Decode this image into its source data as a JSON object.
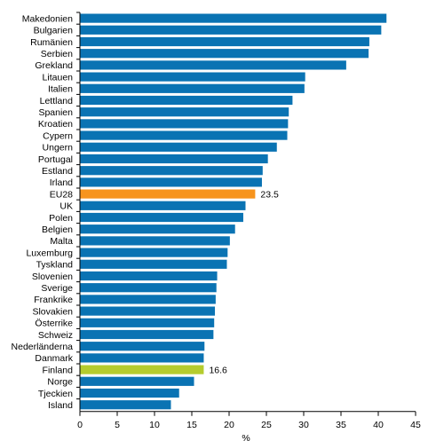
{
  "chart_data": {
    "type": "bar",
    "orientation": "horizontal",
    "title": "",
    "xlabel": "%",
    "ylabel": "",
    "xlim": [
      0,
      45
    ],
    "xticks": [
      0,
      5,
      10,
      15,
      20,
      25,
      30,
      35,
      40,
      45
    ],
    "grid": false,
    "categories": [
      "Makedonien",
      "Bulgarien",
      "Rumänien",
      "Serbien",
      "Grekland",
      "Litauen",
      "Italien",
      "Lettland",
      "Spanien",
      "Kroatien",
      "Cypern",
      "Ungern",
      "Portugal",
      "Estland",
      "Irland",
      "EU28",
      "UK",
      "Polen",
      "Belgien",
      "Malta",
      "Luxemburg",
      "Tyskland",
      "Slovenien",
      "Sverige",
      "Frankrike",
      "Slovakien",
      "Österrike",
      "Schweiz",
      "Nederländerna",
      "Danmark",
      "Finland",
      "Norge",
      "Tjeckien",
      "Island"
    ],
    "values": [
      41.1,
      40.4,
      38.8,
      38.7,
      35.7,
      30.2,
      30.1,
      28.5,
      28.0,
      27.9,
      27.8,
      26.4,
      25.2,
      24.5,
      24.4,
      23.5,
      22.2,
      21.9,
      20.8,
      20.1,
      19.8,
      19.7,
      18.4,
      18.3,
      18.2,
      18.1,
      18.0,
      17.9,
      16.7,
      16.6,
      16.6,
      15.3,
      13.3,
      12.2
    ],
    "data_labels": [
      {
        "category": "EU28",
        "text": "23.5"
      },
      {
        "category": "Finland",
        "text": "16.6"
      }
    ],
    "colors": {
      "default": "#0a73b3",
      "EU28": "#f7941d",
      "Finland": "#b5cc2e",
      "axis": "#000000"
    }
  }
}
